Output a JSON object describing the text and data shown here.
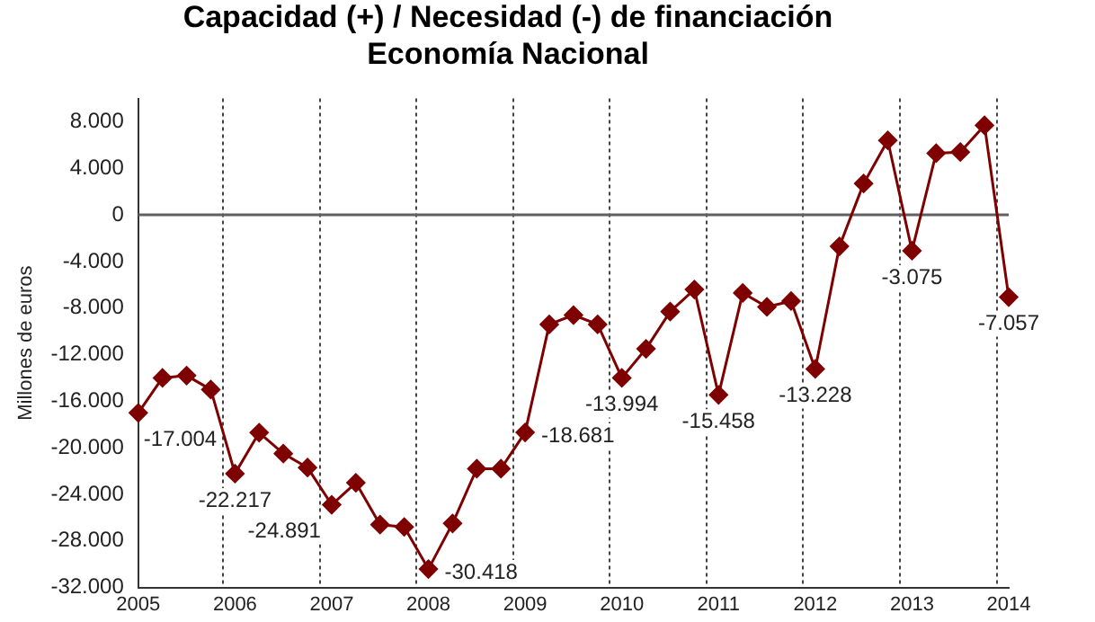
{
  "chart_data": {
    "type": "line",
    "title": "Capacidad (+) / Necesidad (-) de financiación\nEconomía Nacional",
    "ylabel": "Millones de euros",
    "categories": [
      "2005",
      null,
      null,
      null,
      "2006",
      null,
      null,
      null,
      "2007",
      null,
      null,
      null,
      "2008",
      null,
      null,
      null,
      "2009",
      null,
      null,
      null,
      "2010",
      null,
      null,
      null,
      "2011",
      null,
      null,
      null,
      "2012",
      null,
      null,
      null,
      "2013",
      null,
      null,
      null,
      "2014"
    ],
    "series": [
      {
        "color": "#7f0000",
        "values": [
          -17004,
          -14000,
          -13800,
          -15000,
          -22217,
          -18700,
          -20500,
          -21700,
          -24891,
          -23000,
          -26600,
          -26800,
          -30418,
          -26500,
          -21800,
          -21800,
          -18681,
          -9400,
          -8600,
          -9400,
          -13994,
          -11500,
          -8300,
          -6400,
          -15458,
          -6700,
          -7900,
          -7400,
          -13228,
          -2700,
          2700,
          6400,
          -3075,
          5300,
          5400,
          7700,
          -7057
        ],
        "value_labels": [
          "-17.004",
          null,
          null,
          null,
          "-22.217",
          null,
          null,
          null,
          "-24.891",
          null,
          null,
          null,
          "-30.418",
          null,
          null,
          null,
          "-18.681",
          null,
          null,
          null,
          "-13.994",
          null,
          null,
          null,
          "-15.458",
          null,
          null,
          null,
          "-13.228",
          null,
          null,
          null,
          "-3.075",
          null,
          null,
          null,
          "-7.057"
        ]
      }
    ],
    "ylim": [
      -32000,
      10000
    ],
    "yticks": [
      {
        "value": -32000,
        "label": "-32.000"
      },
      {
        "value": -28000,
        "label": "-28.000"
      },
      {
        "value": -24000,
        "label": "-24.000"
      },
      {
        "value": -20000,
        "label": "-20.000"
      },
      {
        "value": -16000,
        "label": "-16.000"
      },
      {
        "value": -12000,
        "label": "-12.000"
      },
      {
        "value": -8000,
        "label": "-8.000"
      },
      {
        "value": -4000,
        "label": "-4.000"
      },
      {
        "value": 0,
        "label": "0"
      },
      {
        "value": 4000,
        "label": "4.000"
      },
      {
        "value": 8000,
        "label": "8.000"
      }
    ],
    "ref_lines": [
      {
        "axis": "y",
        "value": 0,
        "color": "#606060"
      }
    ],
    "grid": "x",
    "legend": false,
    "marker": "diamond",
    "line_style": "solid"
  }
}
